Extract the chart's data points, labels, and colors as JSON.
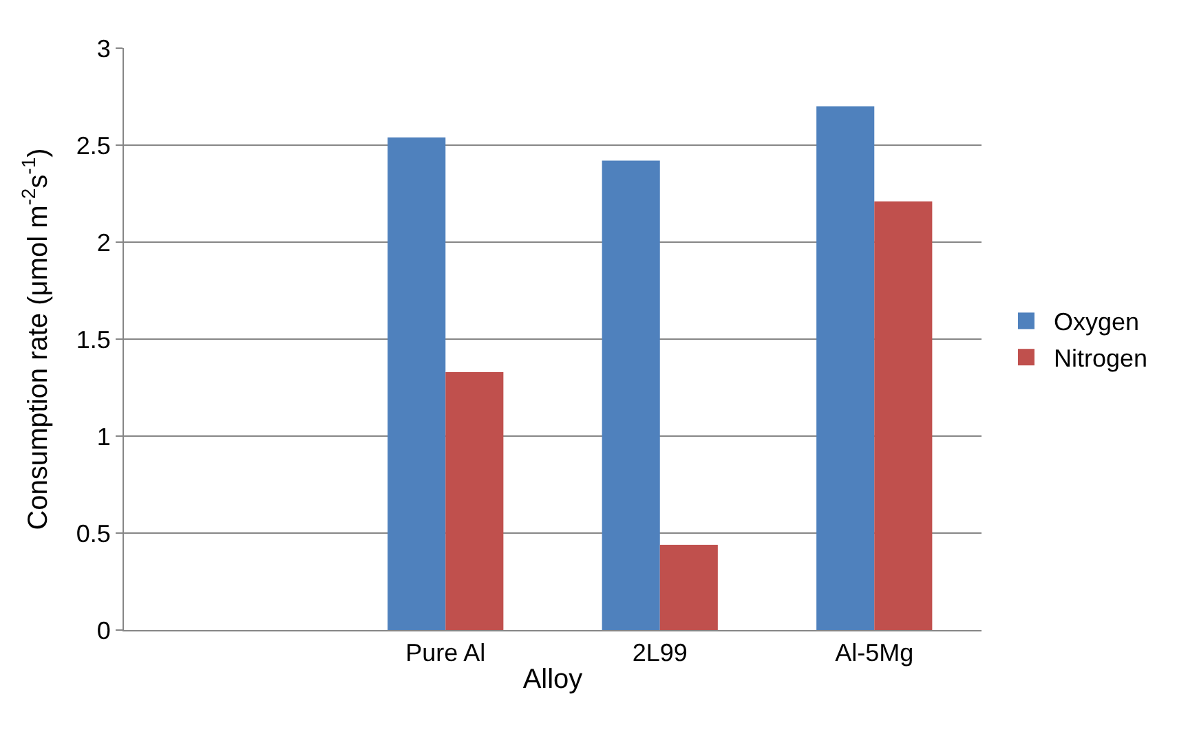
{
  "chart_data": {
    "type": "bar",
    "xlabel": "Alloy",
    "ylabel": "Consumption rate (μmol m$^{-2}$s$^{-1}$)",
    "categories": [
      null,
      "Pure Al",
      "2L99",
      "Al-5Mg"
    ],
    "series": [
      {
        "name": "Oxygen",
        "color": "#4f81bd",
        "values": [
          null,
          2.54,
          2.42,
          2.7
        ]
      },
      {
        "name": "Nitrogen",
        "color": "#c0504d",
        "values": [
          null,
          1.33,
          0.44,
          2.21
        ]
      }
    ],
    "ylim": [
      0,
      3
    ],
    "yticks": [
      0,
      0.5,
      1,
      1.5,
      2,
      2.5,
      3
    ],
    "grid": "y",
    "legend": "right"
  }
}
